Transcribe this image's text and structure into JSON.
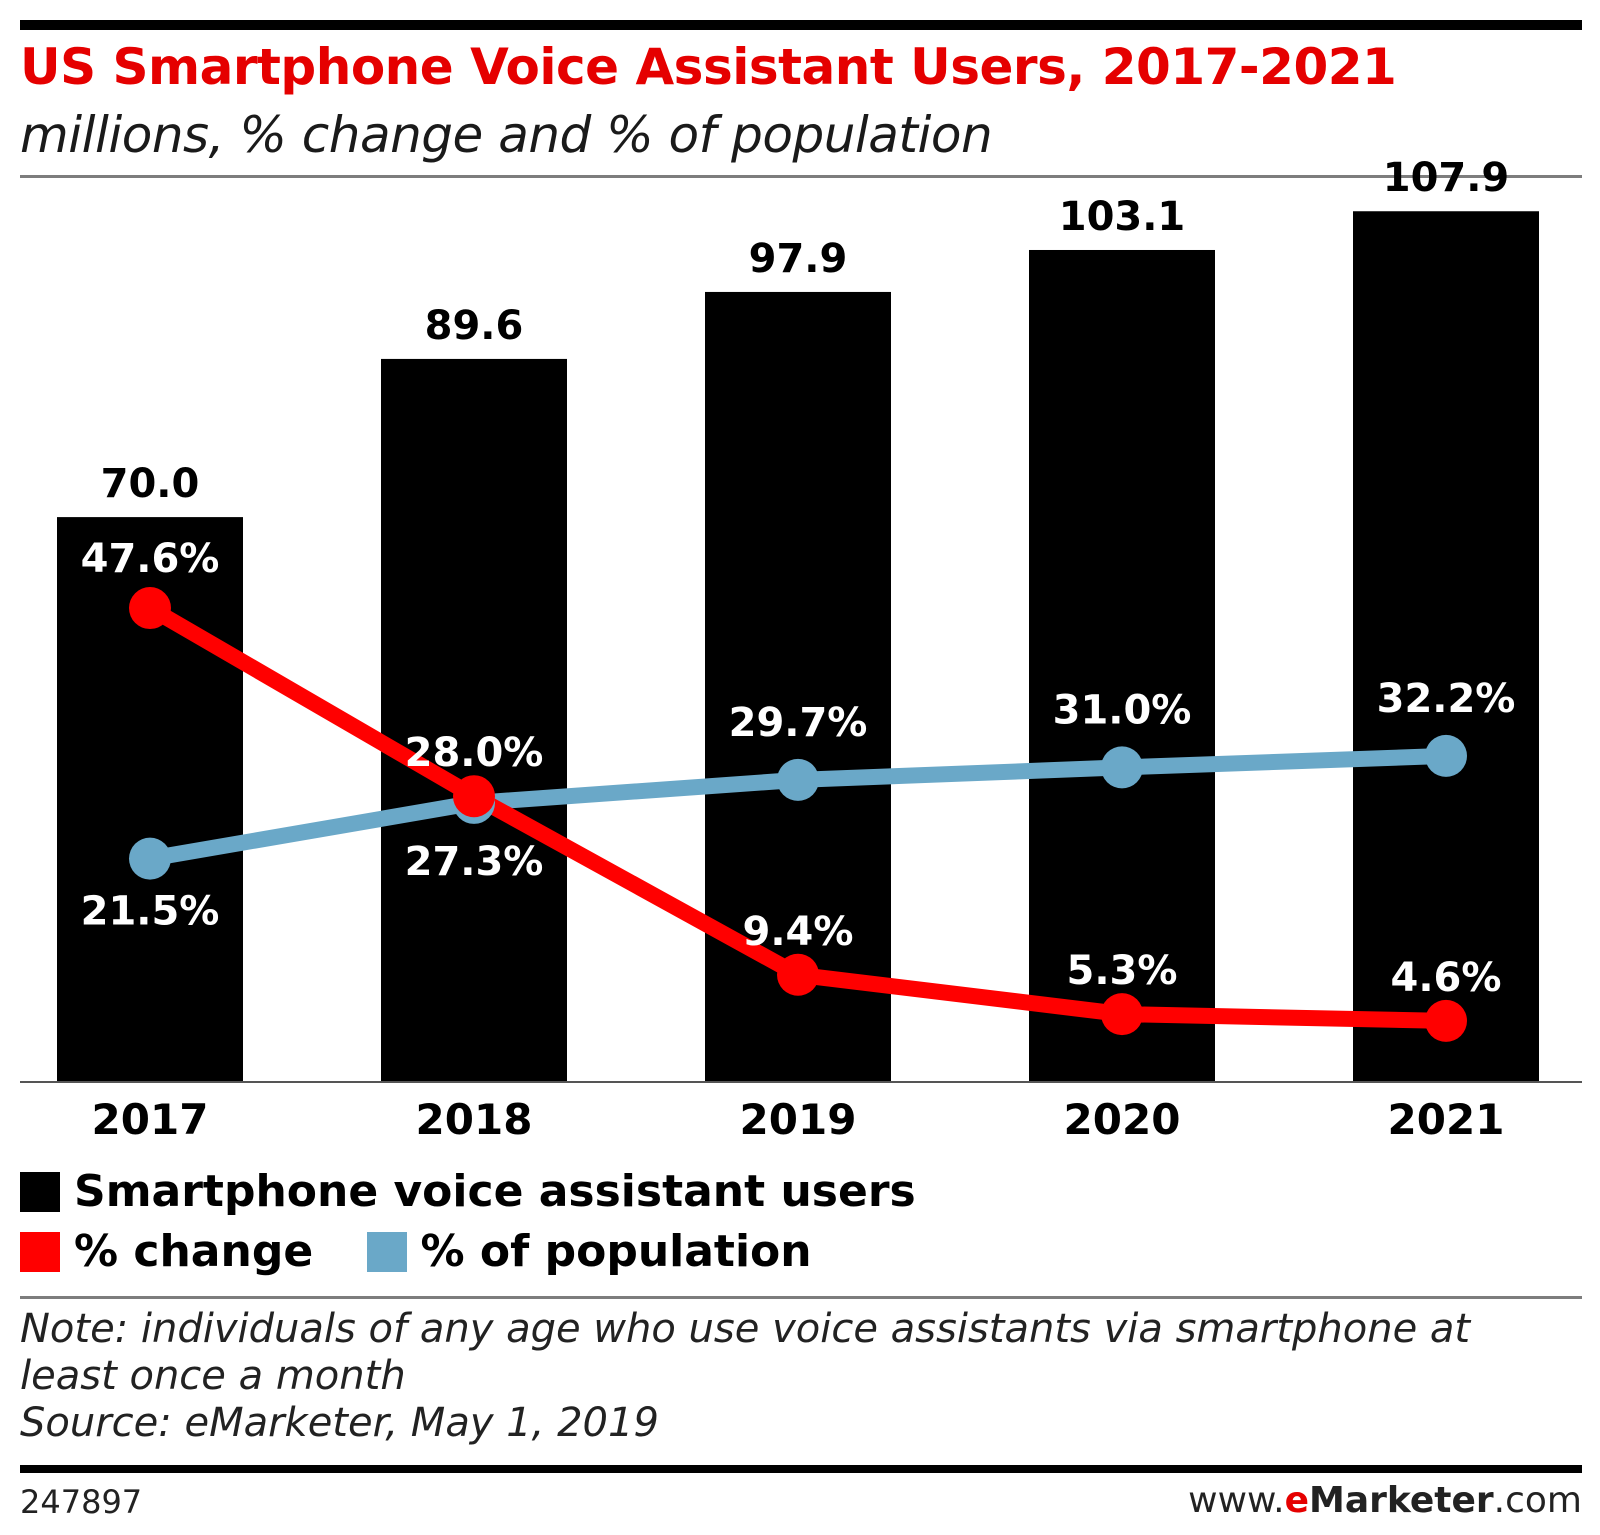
{
  "header": {
    "title": "US Smartphone Voice Assistant Users, 2017-2021",
    "subtitle": "millions, % change and % of population"
  },
  "colors": {
    "bars": "#000000",
    "change": "#ff0000",
    "population": "#6aa8c8",
    "title": "#e50000"
  },
  "chart_data": {
    "type": "bar",
    "title": "US Smartphone Voice Assistant Users, 2017-2021",
    "subtitle": "millions, % change and % of population",
    "categories": [
      "2017",
      "2018",
      "2019",
      "2020",
      "2021"
    ],
    "ylim": [
      0,
      120
    ],
    "series": [
      {
        "name": "Smartphone voice assistant users",
        "kind": "bar",
        "values": [
          70.0,
          89.6,
          97.9,
          103.1,
          107.9
        ],
        "labels": [
          "70.0",
          "89.6",
          "97.9",
          "103.1",
          "107.9"
        ]
      },
      {
        "name": "% change",
        "kind": "line",
        "values": [
          47.6,
          28.0,
          9.4,
          5.3,
          4.6
        ],
        "labels": [
          "47.6%",
          "28.0%",
          "9.4%",
          "5.3%",
          "4.6%"
        ]
      },
      {
        "name": "% of population",
        "kind": "line",
        "values": [
          21.5,
          27.3,
          29.7,
          31.0,
          32.2
        ],
        "labels": [
          "21.5%",
          "27.3%",
          "29.7%",
          "31.0%",
          "32.2%"
        ]
      }
    ]
  },
  "legend": {
    "users": "Smartphone voice assistant users",
    "change": "% change",
    "population": "% of population"
  },
  "footer": {
    "note_line1": "Note: individuals of any age who use voice assistants via smartphone at",
    "note_line2": "least once a month",
    "source": "Source: eMarketer, May 1, 2019",
    "chart_id": "247897",
    "brand_prefix": "www.",
    "brand_e": "e",
    "brand_name": "Marketer",
    "brand_suffix": ".com"
  }
}
